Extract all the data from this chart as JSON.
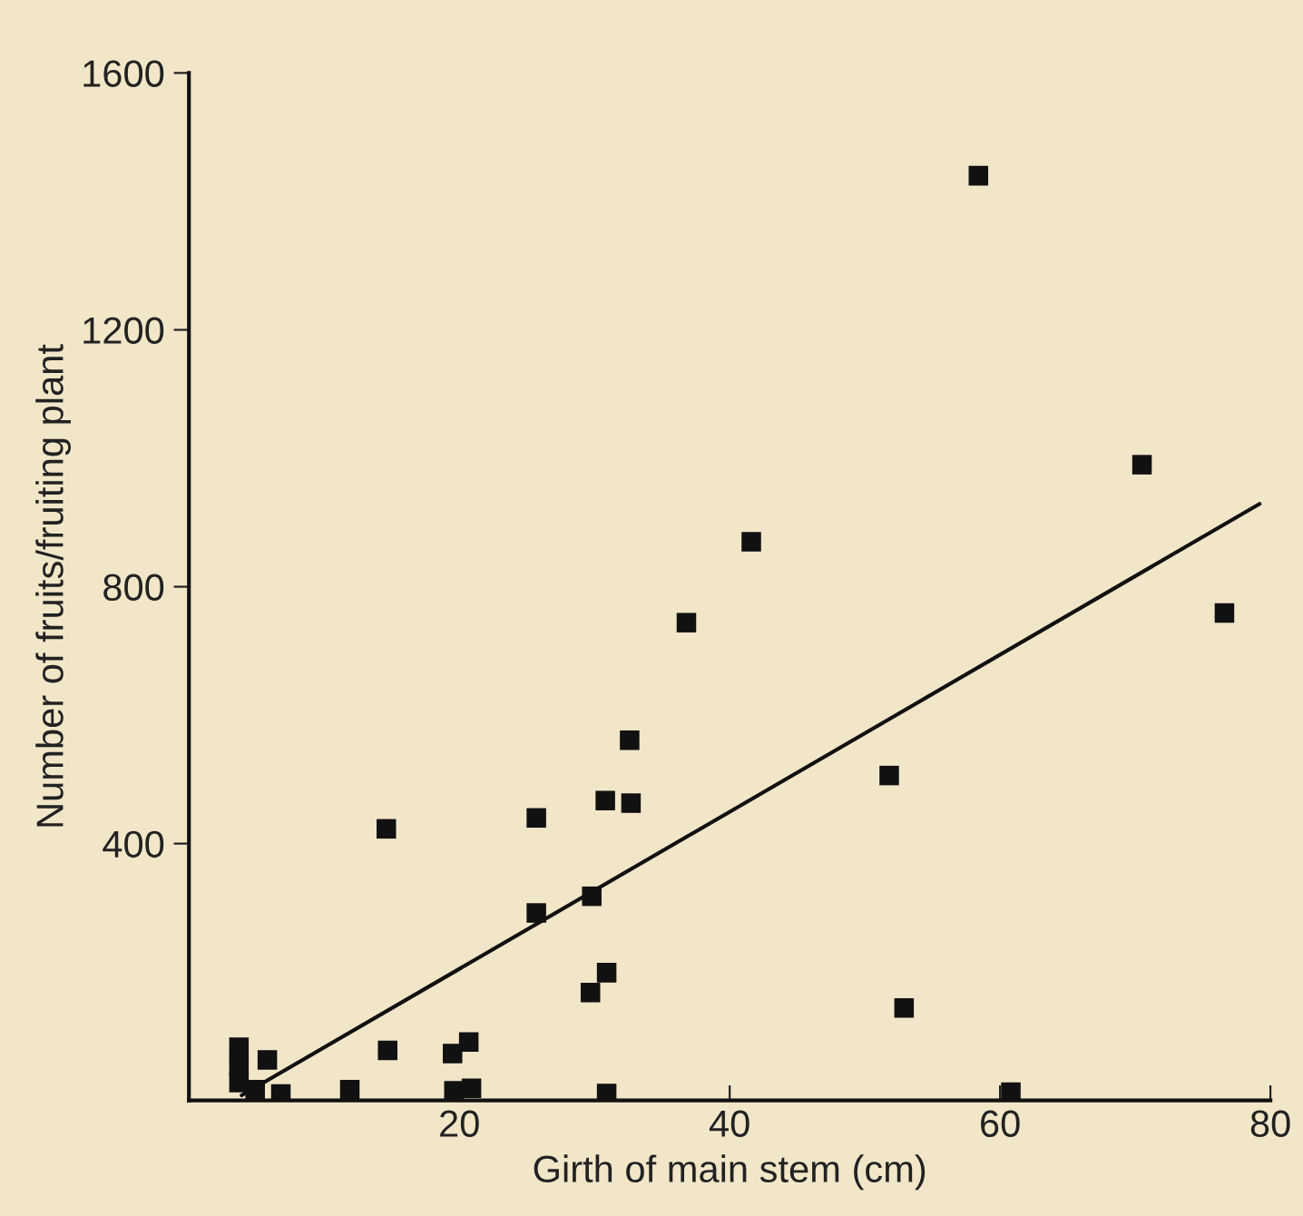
{
  "chart_data": {
    "type": "scatter",
    "xlabel": "Girth of main stem (cm)",
    "ylabel": "Number of fruits/fruiting plant",
    "xlim": [
      0,
      80
    ],
    "ylim": [
      0,
      1600
    ],
    "xticks": [
      20,
      40,
      60,
      80
    ],
    "yticks": [
      400,
      800,
      1200,
      1600
    ],
    "grid": false,
    "legend": false,
    "marker": "square",
    "series": [
      {
        "color": "#111111",
        "x": [
          58.4,
          70.5,
          41.6,
          36.8,
          76.6,
          51.8,
          52.9,
          60.8,
          32.6,
          30.8,
          32.7,
          14.6,
          25.7,
          25.7,
          29.8,
          30.9,
          29.7,
          3.7,
          3.7,
          3.7,
          4.9,
          5.8,
          6.8,
          11.9,
          14.7,
          19.5,
          20.7,
          19.6,
          20.9,
          30.9
        ],
        "values": [
          1440,
          990,
          870,
          744,
          759,
          506,
          144,
          13,
          561,
          467,
          463,
          423,
          440,
          292,
          318,
          199,
          168,
          83,
          54,
          28,
          17,
          63,
          10,
          17,
          78,
          73,
          91,
          15,
          19,
          11
        ]
      },
      {
        "type": "line",
        "color": "#111111",
        "marker": "none",
        "x": [
          3.9,
          79.2
        ],
        "values": [
          8,
          929
        ]
      }
    ]
  }
}
